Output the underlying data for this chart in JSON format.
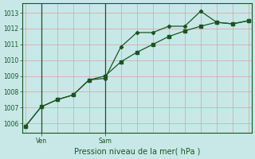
{
  "title": "Pression niveau de la mer( hPa )",
  "bg_color": "#c8e8e8",
  "grid_color_major": "#d8a0a0",
  "grid_color_minor": "#d8a0a0",
  "line_color": "#1a5520",
  "spine_color": "#1a5520",
  "ylim": [
    1005.4,
    1013.6
  ],
  "yticks": [
    1006,
    1007,
    1008,
    1009,
    1010,
    1011,
    1012,
    1013
  ],
  "xlim": [
    -0.2,
    14.2
  ],
  "line1_x": [
    0,
    1,
    2,
    3,
    4,
    5,
    6,
    7,
    8,
    9,
    10,
    11,
    12,
    13,
    14
  ],
  "line1_y": [
    1005.8,
    1007.05,
    1007.5,
    1007.8,
    1008.75,
    1009.0,
    1009.9,
    1010.5,
    1011.0,
    1011.5,
    1011.85,
    1012.15,
    1012.4,
    1012.3,
    1012.5
  ],
  "line2_x": [
    0,
    1,
    2,
    3,
    4,
    5,
    6,
    7,
    8,
    9,
    10,
    11,
    12,
    13,
    14
  ],
  "line2_y": [
    1005.8,
    1007.05,
    1007.5,
    1007.8,
    1008.75,
    1008.85,
    1010.85,
    1011.75,
    1011.75,
    1012.15,
    1012.15,
    1013.1,
    1012.4,
    1012.3,
    1012.5
  ],
  "ven_x": 1,
  "sam_x": 5,
  "tick_fontsize": 5.5,
  "xlabel_fontsize": 7,
  "label_color": "#1a5520"
}
